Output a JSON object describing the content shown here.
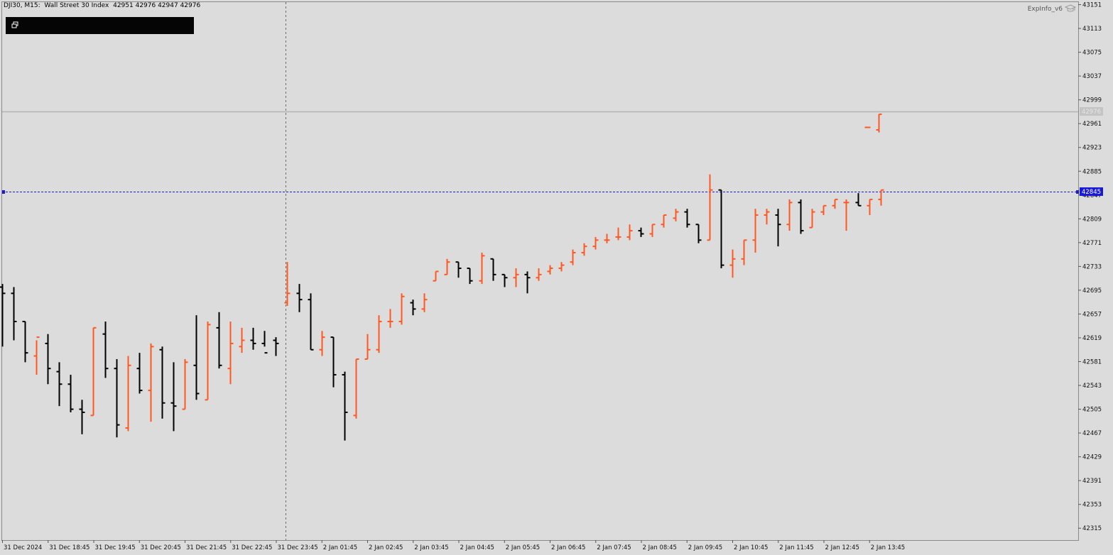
{
  "header": {
    "symbol_line": "DJI30, M15:  Wall Street 30 Index  42951 42976 42947 42976",
    "indicator_label": "ExpInfo_v6"
  },
  "icons": {
    "panel": "window-restore-icon",
    "indicator": "graduation-cap-icon"
  },
  "colors": {
    "background": "#dcdcdc",
    "bull_bar": "#ff5722",
    "bear_bar": "#000000",
    "level_line": "#1a1ad4",
    "bid_line": "#b4b4b4",
    "crosshair": "#6e6e6e",
    "info_panel": "#050505"
  },
  "price_labels": {
    "level": "42845",
    "bid": "42976"
  },
  "chart_data": {
    "type": "ohlc_bar",
    "symbol": "DJI30",
    "timeframe": "M15",
    "description": "Wall Street 30 Index",
    "ylim": [
      42296,
      43155
    ],
    "yticks": [
      "43151",
      "43113",
      "43075",
      "43037",
      "42999",
      "42961",
      "42923",
      "42885",
      "42847",
      "42809",
      "42771",
      "42733",
      "42695",
      "42657",
      "42619",
      "42581",
      "42543",
      "42505",
      "42467",
      "42429",
      "42391",
      "42353",
      "42315"
    ],
    "xticks": [
      "31 Dec 2024",
      "31 Dec 18:45",
      "31 Dec 19:45",
      "31 Dec 20:45",
      "31 Dec 21:45",
      "31 Dec 22:45",
      "31 Dec 23:45",
      "2 Jan 01:45",
      "2 Jan 02:45",
      "2 Jan 03:45",
      "2 Jan 04:45",
      "2 Jan 05:45",
      "2 Jan 06:45",
      "2 Jan 07:45",
      "2 Jan 08:45",
      "2 Jan 09:45",
      "2 Jan 10:45",
      "2 Jan 11:45",
      "2 Jan 12:45",
      "2 Jan 13:45"
    ],
    "bars": [
      [
        42700,
        42705,
        42605,
        42690
      ],
      [
        42690,
        42700,
        42615,
        42645
      ],
      [
        42645,
        42645,
        42580,
        42595
      ],
      [
        42590,
        42615,
        42560,
        42620
      ],
      [
        42610,
        42625,
        42545,
        42570
      ],
      [
        42565,
        42580,
        42510,
        42545
      ],
      [
        42545,
        42560,
        42500,
        42505
      ],
      [
        42505,
        42520,
        42465,
        42500
      ],
      [
        42495,
        42635,
        42495,
        42635
      ],
      [
        42625,
        42645,
        42555,
        42570
      ],
      [
        42570,
        42585,
        42460,
        42480
      ],
      [
        42475,
        42590,
        42470,
        42575
      ],
      [
        42570,
        42595,
        42530,
        42535
      ],
      [
        42535,
        42610,
        42485,
        42605
      ],
      [
        42600,
        42605,
        42490,
        42515
      ],
      [
        42515,
        42580,
        42470,
        42510
      ],
      [
        42505,
        42585,
        42505,
        42580
      ],
      [
        42575,
        42655,
        42520,
        42530
      ],
      [
        42520,
        42645,
        42520,
        42640
      ],
      [
        42635,
        42660,
        42570,
        42575
      ],
      [
        42570,
        42645,
        42545,
        42610
      ],
      [
        42605,
        42635,
        42595,
        42615
      ],
      [
        42615,
        42635,
        42600,
        42610
      ],
      [
        42610,
        42630,
        42605,
        42595
      ],
      [
        42615,
        42620,
        42590,
        42610
      ],
      [
        42675,
        42740,
        42670,
        42690
      ],
      [
        42690,
        42705,
        42660,
        42680
      ],
      [
        42680,
        42690,
        42600,
        42600
      ],
      [
        42600,
        42630,
        42590,
        42620
      ],
      [
        42620,
        42620,
        42540,
        42560
      ],
      [
        42560,
        42565,
        42455,
        42500
      ],
      [
        42495,
        42585,
        42490,
        42585
      ],
      [
        42585,
        42625,
        42585,
        42600
      ],
      [
        42600,
        42655,
        42595,
        42645
      ],
      [
        42645,
        42665,
        42635,
        42645
      ],
      [
        42645,
        42690,
        42640,
        42685
      ],
      [
        42675,
        42680,
        42655,
        42665
      ],
      [
        42665,
        42690,
        42660,
        42680
      ],
      [
        42710,
        42725,
        42710,
        42725
      ],
      [
        42720,
        42745,
        42720,
        42740
      ],
      [
        42740,
        42740,
        42715,
        42730
      ],
      [
        42730,
        42730,
        42705,
        42710
      ],
      [
        42710,
        42755,
        42705,
        42750
      ],
      [
        42745,
        42745,
        42710,
        42720
      ],
      [
        42720,
        42720,
        42700,
        42715
      ],
      [
        42715,
        42730,
        42700,
        42720
      ],
      [
        42720,
        42725,
        42690,
        42715
      ],
      [
        42715,
        42730,
        42710,
        42720
      ],
      [
        42725,
        42735,
        42720,
        42730
      ],
      [
        42730,
        42740,
        42725,
        42735
      ],
      [
        42740,
        42760,
        42735,
        42755
      ],
      [
        42755,
        42770,
        42750,
        42765
      ],
      [
        42765,
        42780,
        42760,
        42775
      ],
      [
        42775,
        42785,
        42770,
        42775
      ],
      [
        42780,
        42795,
        42775,
        42780
      ],
      [
        42780,
        42800,
        42775,
        42790
      ],
      [
        42790,
        42795,
        42780,
        42785
      ],
      [
        42785,
        42800,
        42780,
        42800
      ],
      [
        42800,
        42815,
        42795,
        42815
      ],
      [
        42810,
        42825,
        42805,
        42820
      ],
      [
        42820,
        42825,
        42795,
        42800
      ],
      [
        42800,
        42800,
        42770,
        42775
      ],
      [
        42775,
        42880,
        42775,
        42855
      ],
      [
        42855,
        42855,
        42730,
        42735
      ],
      [
        42735,
        42760,
        42715,
        42745
      ],
      [
        42745,
        42775,
        42735,
        42775
      ],
      [
        42775,
        42825,
        42755,
        42815
      ],
      [
        42815,
        42825,
        42800,
        42820
      ],
      [
        42815,
        42825,
        42765,
        42800
      ],
      [
        42800,
        42840,
        42790,
        42835
      ],
      [
        42835,
        42840,
        42785,
        42790
      ],
      [
        42795,
        42825,
        42795,
        42820
      ],
      [
        42820,
        42830,
        42815,
        42830
      ],
      [
        42830,
        42840,
        42825,
        42840
      ],
      [
        42835,
        42840,
        42790,
        42835
      ],
      [
        42835,
        42850,
        42830,
        42830
      ],
      [
        42830,
        42840,
        42815,
        42840
      ],
      [
        42840,
        42855,
        42830,
        42855
      ],
      [
        42955,
        42955,
        42955,
        42955
      ],
      [
        42951,
        42976,
        42947,
        42976
      ]
    ]
  }
}
